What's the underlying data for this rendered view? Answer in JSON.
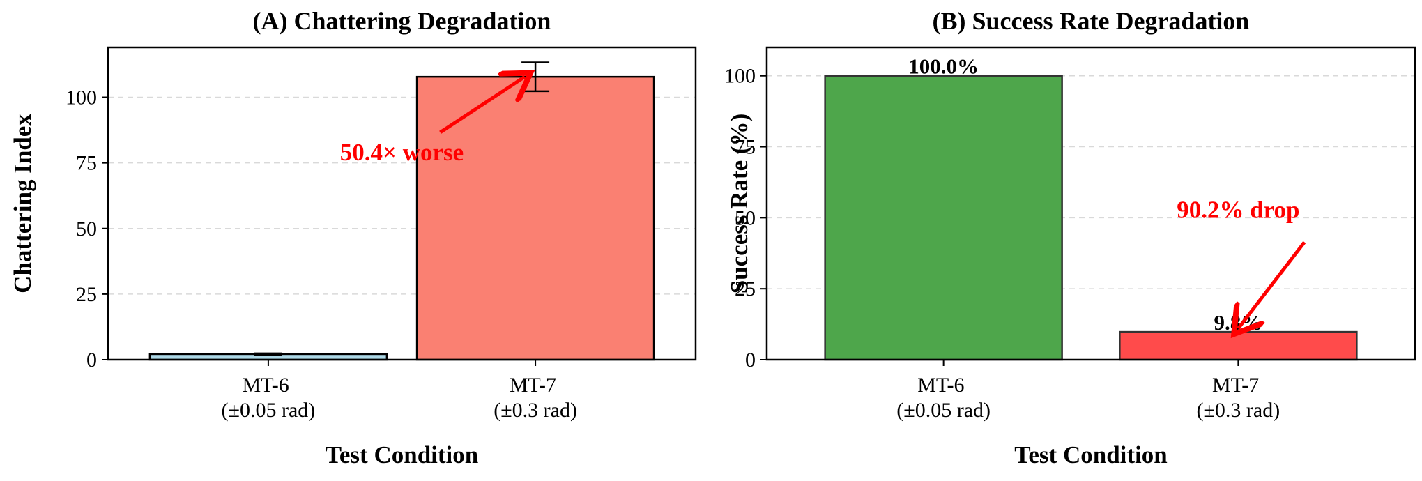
{
  "chart_data": [
    {
      "type": "bar",
      "title": "(A) Chattering Degradation",
      "xlabel": "Test Condition",
      "ylabel": "Chattering Index",
      "categories": [
        {
          "line1": "MT-6",
          "line2": "(±0.05 rad)"
        },
        {
          "line1": "MT-7",
          "line2": "(±0.3 rad)"
        }
      ],
      "values": [
        2.14,
        107.8
      ],
      "errors": [
        0.3,
        5.5
      ],
      "colors": [
        "#add8e6",
        "#fa8072"
      ],
      "ylim": [
        0,
        119
      ],
      "yticks": [
        0,
        25,
        50,
        75,
        100
      ],
      "grid": "y-dashed",
      "annotation": {
        "text": "50.4× worse",
        "text_at": [
          0.5,
          76
        ],
        "arrow_to": [
          0.96,
          107.8
        ],
        "color": "#ff0000"
      }
    },
    {
      "type": "bar",
      "title": "(B) Success Rate Degradation",
      "xlabel": "Test Condition",
      "ylabel": "Success Rate (%)",
      "categories": [
        {
          "line1": "MT-6",
          "line2": "(±0.05 rad)"
        },
        {
          "line1": "MT-7",
          "line2": "(±0.3 rad)"
        }
      ],
      "values": [
        100.0,
        9.8
      ],
      "bar_labels": [
        "100.0%",
        "9.8%"
      ],
      "colors": [
        "#4ea64b",
        "#ff4b4b"
      ],
      "ylim": [
        0,
        110
      ],
      "yticks": [
        0,
        25,
        50,
        75,
        100
      ],
      "grid": "y-dashed",
      "annotation": {
        "text": "90.2% drop",
        "text_at": [
          1.0,
          50
        ],
        "arrow_to": [
          1.0,
          11
        ],
        "color": "#ff0000"
      }
    }
  ]
}
